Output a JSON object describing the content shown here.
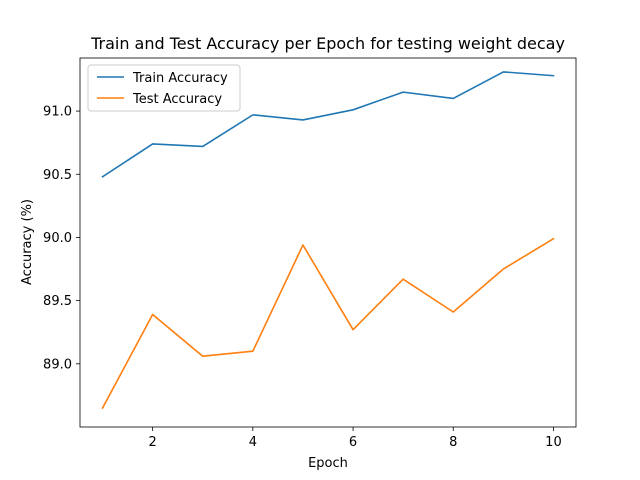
{
  "chart_data": {
    "type": "line",
    "title": "Train and Test Accuracy per Epoch for testing weight decay",
    "xlabel": "Epoch",
    "ylabel": "Accuracy (%)",
    "xlim": [
      0.55,
      10.45
    ],
    "ylim": [
      88.5,
      91.42
    ],
    "xticks": [
      2,
      4,
      6,
      8,
      10
    ],
    "yticks": [
      89.0,
      89.5,
      90.0,
      90.5,
      91.0
    ],
    "ytick_labels": [
      "89.0",
      "89.5",
      "90.0",
      "90.5",
      "91.0"
    ],
    "grid": false,
    "legend_position": "upper-left",
    "x": [
      1,
      2,
      3,
      4,
      5,
      6,
      7,
      8,
      9,
      10
    ],
    "series": [
      {
        "name": "Train Accuracy",
        "color": "#1f77b4",
        "values": [
          90.48,
          90.74,
          90.72,
          90.97,
          90.93,
          91.01,
          91.15,
          91.1,
          91.31,
          91.28
        ]
      },
      {
        "name": "Test Accuracy",
        "color": "#ff7f0e",
        "values": [
          88.65,
          89.39,
          89.06,
          89.1,
          89.94,
          89.27,
          89.67,
          89.41,
          89.75,
          89.99
        ]
      }
    ]
  }
}
